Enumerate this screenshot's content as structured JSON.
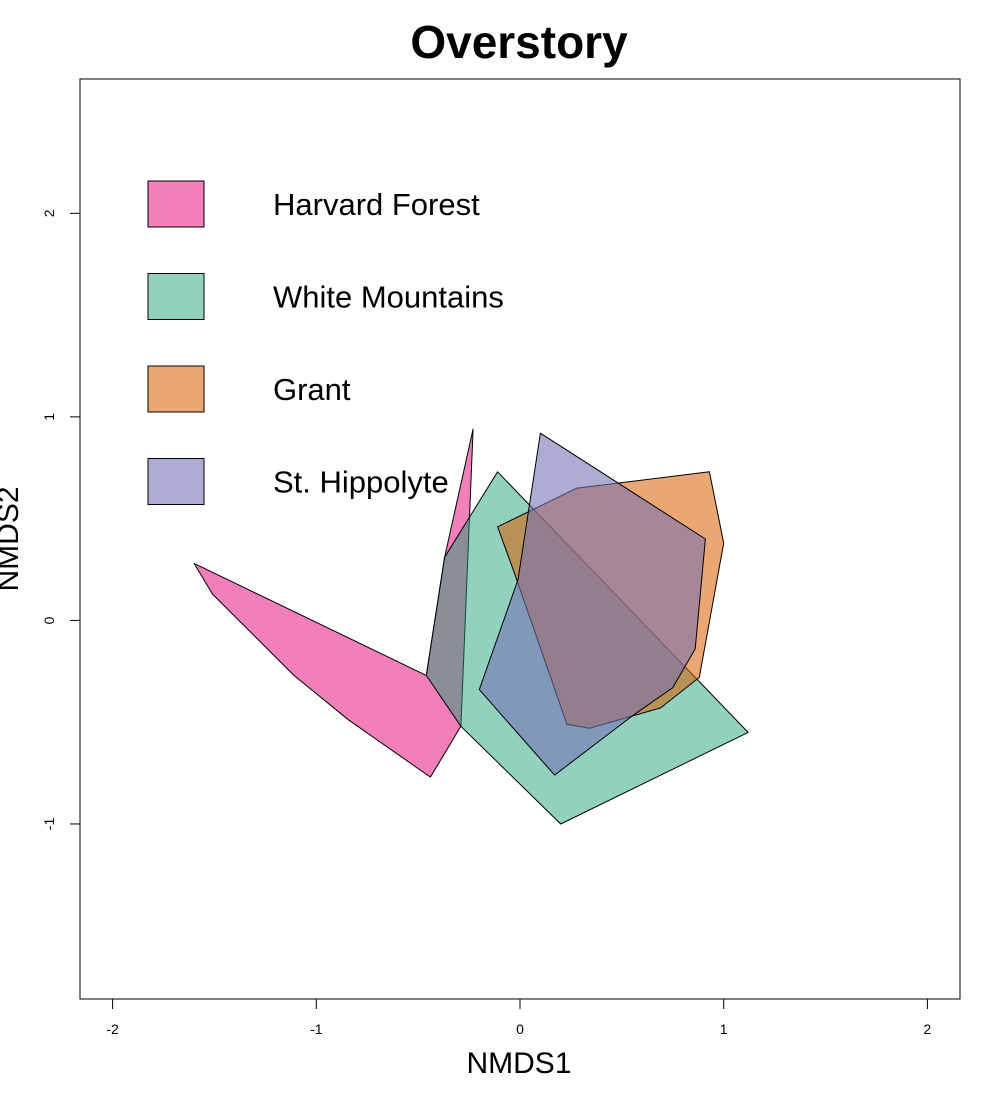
{
  "chart_data": {
    "type": "polygon-hull",
    "title": "Overstory",
    "xlabel": "NMDS1",
    "ylabel": "NMDS2",
    "xlim": [
      -2.16,
      2.16
    ],
    "ylim": [
      -1.86,
      2.66
    ],
    "xticks": [
      -2,
      -1,
      0,
      1,
      2
    ],
    "yticks": [
      -1,
      0,
      1,
      2
    ],
    "grid": false,
    "legend_position": "top-left",
    "series": [
      {
        "name": "Harvard Forest",
        "color": "#e7298a",
        "fill_opacity": 0.6,
        "points": [
          [
            -1.6,
            0.28
          ],
          [
            -1.51,
            0.13
          ],
          [
            -1.11,
            -0.27
          ],
          [
            -0.84,
            -0.49
          ],
          [
            -0.44,
            -0.77
          ],
          [
            -0.29,
            -0.52
          ],
          [
            -0.23,
            0.94
          ],
          [
            -0.37,
            0.31
          ],
          [
            -0.46,
            -0.27
          ]
        ]
      },
      {
        "name": "White Mountains",
        "color": "#1b9e77",
        "fill_opacity": 0.48,
        "points": [
          [
            -0.11,
            0.73
          ],
          [
            -0.37,
            0.31
          ],
          [
            -0.46,
            -0.27
          ],
          [
            -0.29,
            -0.52
          ],
          [
            0.2,
            -1.0
          ],
          [
            1.12,
            -0.55
          ]
        ]
      },
      {
        "name": "Grant",
        "color": "#d95f02",
        "fill_opacity": 0.55,
        "points": [
          [
            -0.11,
            0.46
          ],
          [
            0.28,
            0.65
          ],
          [
            0.93,
            0.73
          ],
          [
            1.0,
            0.38
          ],
          [
            0.88,
            -0.28
          ],
          [
            0.69,
            -0.43
          ],
          [
            0.34,
            -0.53
          ],
          [
            0.23,
            -0.51
          ],
          [
            -0.03,
            0.24
          ]
        ]
      },
      {
        "name": "St. Hippolyte",
        "color": "#7570b3",
        "fill_opacity": 0.58,
        "points": [
          [
            0.1,
            0.92
          ],
          [
            0.91,
            0.4
          ],
          [
            0.86,
            -0.14
          ],
          [
            0.75,
            -0.33
          ],
          [
            0.55,
            -0.47
          ],
          [
            0.17,
            -0.76
          ],
          [
            -0.2,
            -0.34
          ],
          [
            -0.01,
            0.2
          ]
        ]
      }
    ]
  }
}
